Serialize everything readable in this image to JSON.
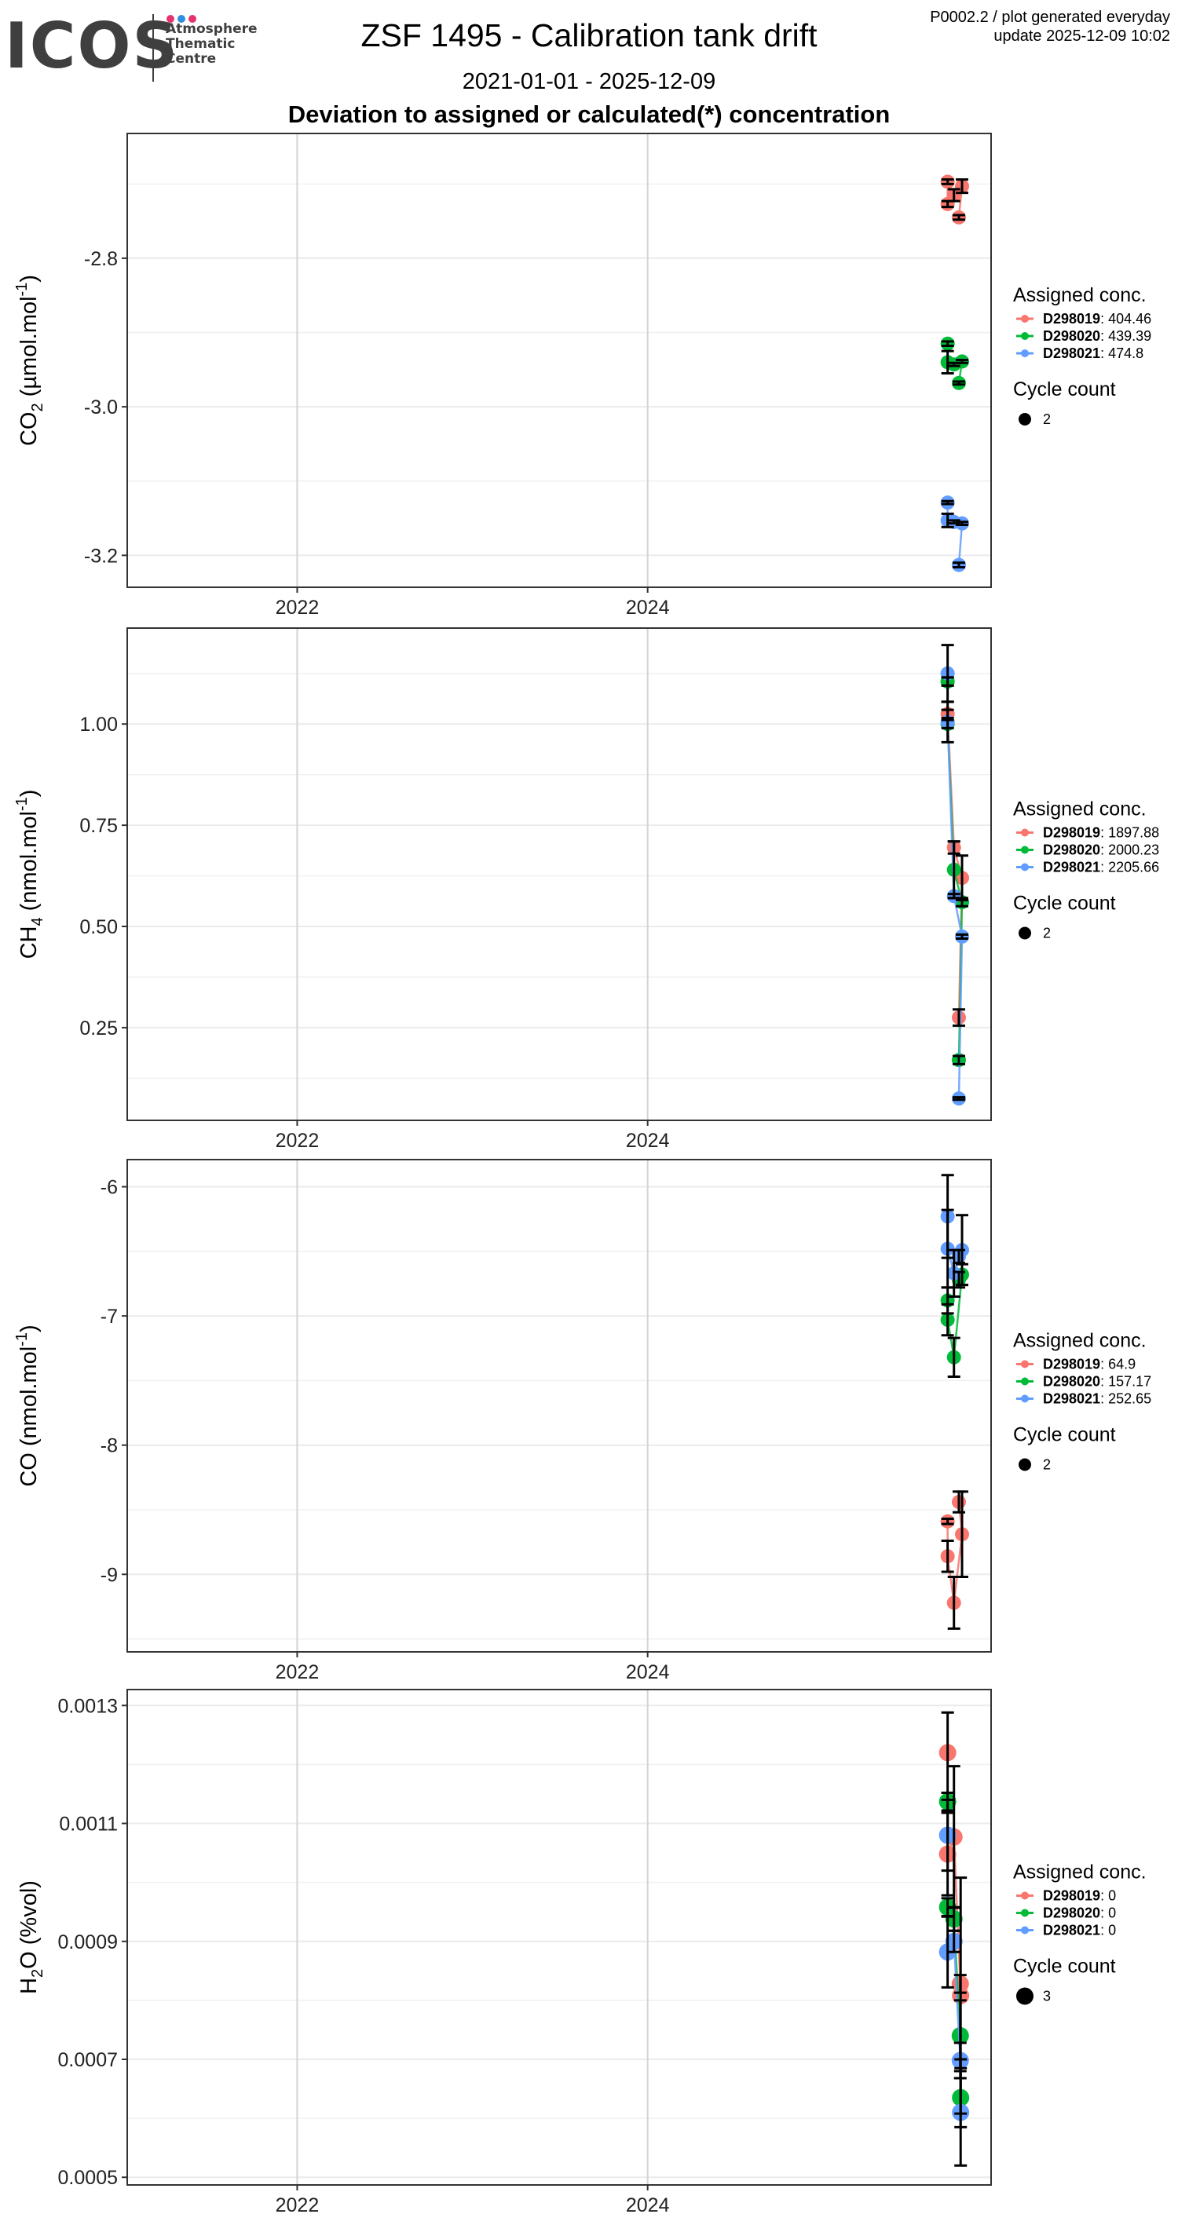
{
  "header": {
    "logo": {
      "name": "ICOS",
      "subtitle_lines": [
        "Atmosphere",
        "Thematic",
        "Centre"
      ],
      "dot_colors": [
        "#e6336f",
        "#2f8fe0",
        "#e6336f"
      ]
    },
    "title": "ZSF 1495 - Calibration tank drift",
    "date_range": "2021-01-01 - 2025-12-09",
    "section_title": "Deviation to assigned or calculated(*) concentration",
    "info_line1": "P0002.2 / plot generated everyday",
    "info_line2": "update  2025-12-09 10:02"
  },
  "chart_data": [
    {
      "type": "scatter",
      "id": "co2",
      "ylabel": "CO2 (µmol.mol-1)",
      "ylabel_parts": {
        "main": "CO",
        "sub": "2",
        "unit": " (µmol.mol",
        "sup": "-1",
        "close": ")"
      },
      "xlim": [
        2021.03,
        2025.96
      ],
      "x_ticks": [
        2022,
        2024
      ],
      "x_tick_labels": [
        "2022",
        "2024"
      ],
      "ylim": [
        -3.243,
        -2.632
      ],
      "y_ticks": [
        -2.8,
        -3.0,
        -3.2
      ],
      "y_tick_labels": [
        "-2.8",
        "-3.0",
        "-3.2"
      ],
      "y_minor": [
        -2.7,
        -2.9,
        -3.1
      ],
      "grid": true,
      "legend": {
        "title": "Assigned conc.",
        "entries": [
          {
            "tank": "D298019",
            "value": "404.46"
          },
          {
            "tank": "D298020",
            "value": "439.39"
          },
          {
            "tank": "D298021",
            "value": "474.8"
          }
        ],
        "size_title": "Cycle count",
        "size_value": "2"
      },
      "series": [
        {
          "name": "D298019",
          "color": "#f8766d",
          "points": [
            {
              "x": 2025.72,
              "y": -2.697,
              "err": 0.003
            },
            {
              "x": 2025.72,
              "y": -2.727,
              "err": 0.004
            },
            {
              "x": 2025.74,
              "y": -2.715,
              "err": 0.008
            },
            {
              "x": 2025.77,
              "y": -2.703,
              "err": 0.009
            },
            {
              "x": 2025.76,
              "y": -2.745,
              "err": 0.003
            }
          ]
        },
        {
          "name": "D298020",
          "color": "#00ba38",
          "points": [
            {
              "x": 2025.72,
              "y": -2.915,
              "err": 0.003
            },
            {
              "x": 2025.72,
              "y": -2.94,
              "err": 0.015
            },
            {
              "x": 2025.74,
              "y": -2.943,
              "err": 0.002
            },
            {
              "x": 2025.77,
              "y": -2.939,
              "err": 0.002
            },
            {
              "x": 2025.76,
              "y": -2.968,
              "err": 0.002
            }
          ]
        },
        {
          "name": "D298021",
          "color": "#619cff",
          "points": [
            {
              "x": 2025.72,
              "y": -3.129,
              "err": 0.002
            },
            {
              "x": 2025.72,
              "y": -3.153,
              "err": 0.009
            },
            {
              "x": 2025.74,
              "y": -3.155,
              "err": 0.002
            },
            {
              "x": 2025.77,
              "y": -3.157,
              "err": 0.002
            },
            {
              "x": 2025.76,
              "y": -3.213,
              "err": 0.003
            }
          ]
        }
      ]
    },
    {
      "type": "scatter",
      "id": "ch4",
      "ylabel": "CH4 (nmol.mol-1)",
      "ylabel_parts": {
        "main": "CH",
        "sub": "4",
        "unit": " (nmol.mol",
        "sup": "-1",
        "close": ")"
      },
      "xlim": [
        2021.03,
        2025.96
      ],
      "x_ticks": [
        2022,
        2024
      ],
      "x_tick_labels": [
        "2022",
        "2024"
      ],
      "ylim": [
        0.021,
        1.237
      ],
      "y_ticks": [
        1.0,
        0.75,
        0.5,
        0.25
      ],
      "y_tick_labels": [
        "1.00",
        "0.75",
        "0.50",
        "0.25"
      ],
      "y_minor": [
        1.125,
        0.875,
        0.625,
        0.375,
        0.125
      ],
      "grid": true,
      "legend": {
        "title": "Assigned conc.",
        "entries": [
          {
            "tank": "D298019",
            "value": "1897.88"
          },
          {
            "tank": "D298020",
            "value": "2000.23"
          },
          {
            "tank": "D298021",
            "value": "2205.66"
          }
        ],
        "size_title": "Cycle count",
        "size_value": "2"
      },
      "series": [
        {
          "name": "D298019",
          "color": "#f8766d",
          "points": [
            {
              "x": 2025.72,
              "y": 1.105,
              "err": 0.01
            },
            {
              "x": 2025.72,
              "y": 1.025,
              "err": 0.01
            },
            {
              "x": 2025.74,
              "y": 0.695,
              "err": 0.015
            },
            {
              "x": 2025.77,
              "y": 0.62,
              "err": 0.055
            },
            {
              "x": 2025.76,
              "y": 0.275,
              "err": 0.02
            }
          ]
        },
        {
          "name": "D298020",
          "color": "#00ba38",
          "points": [
            {
              "x": 2025.72,
              "y": 1.105,
              "err": 0.01
            },
            {
              "x": 2025.72,
              "y": 1.0,
              "err": 0.01
            },
            {
              "x": 2025.74,
              "y": 0.64,
              "err": 0.07
            },
            {
              "x": 2025.77,
              "y": 0.56,
              "err": 0.01
            },
            {
              "x": 2025.76,
              "y": 0.17,
              "err": 0.01
            }
          ]
        },
        {
          "name": "D298021",
          "color": "#619cff",
          "points": [
            {
              "x": 2025.72,
              "y": 1.125,
              "err": 0.07
            },
            {
              "x": 2025.72,
              "y": 1.005,
              "err": 0.05
            },
            {
              "x": 2025.74,
              "y": 0.575,
              "err": 0.005
            },
            {
              "x": 2025.77,
              "y": 0.475,
              "err": 0.005
            },
            {
              "x": 2025.76,
              "y": 0.075,
              "err": 0.003
            }
          ]
        }
      ]
    },
    {
      "type": "scatter",
      "id": "co",
      "ylabel": "CO (nmol.mol-1)",
      "ylabel_parts": {
        "main": "CO",
        "sub": "",
        "unit": " (nmol.mol",
        "sup": "-1",
        "close": ")"
      },
      "xlim": [
        2021.03,
        2025.96
      ],
      "x_ticks": [
        2022,
        2024
      ],
      "x_tick_labels": [
        "2022",
        "2024"
      ],
      "ylim": [
        -9.6,
        -5.79
      ],
      "y_ticks": [
        -6,
        -7,
        -8,
        -9
      ],
      "y_tick_labels": [
        "-6",
        "-7",
        "-8",
        "-9"
      ],
      "y_minor": [
        -6.5,
        -7.5,
        -8.5,
        -9.5
      ],
      "grid": true,
      "legend": {
        "title": "Assigned conc.",
        "entries": [
          {
            "tank": "D298019",
            "value": "64.9"
          },
          {
            "tank": "D298020",
            "value": "157.17"
          },
          {
            "tank": "D298021",
            "value": "252.65"
          }
        ],
        "size_title": "Cycle count",
        "size_value": "2"
      },
      "series": [
        {
          "name": "D298019",
          "color": "#f8766d",
          "points": [
            {
              "x": 2025.72,
              "y": -8.59,
              "err": 0.02
            },
            {
              "x": 2025.72,
              "y": -8.86,
              "err": 0.12
            },
            {
              "x": 2025.74,
              "y": -9.22,
              "err": 0.2
            },
            {
              "x": 2025.77,
              "y": -8.69,
              "err": 0.33
            },
            {
              "x": 2025.76,
              "y": -8.44,
              "err": 0.08
            }
          ]
        },
        {
          "name": "D298020",
          "color": "#00ba38",
          "points": [
            {
              "x": 2025.72,
              "y": -6.88,
              "err": 0.1
            },
            {
              "x": 2025.72,
              "y": -7.03,
              "err": 0.12
            },
            {
              "x": 2025.74,
              "y": -7.32,
              "err": 0.15
            },
            {
              "x": 2025.77,
              "y": -6.68,
              "err": 0.08
            },
            {
              "x": 2025.76,
              "y": -6.72,
              "err": 0.06
            }
          ]
        },
        {
          "name": "D298021",
          "color": "#619cff",
          "points": [
            {
              "x": 2025.72,
              "y": -6.23,
              "err": 0.32
            },
            {
              "x": 2025.72,
              "y": -6.48,
              "err": 0.3
            },
            {
              "x": 2025.74,
              "y": -6.67,
              "err": 0.18
            },
            {
              "x": 2025.77,
              "y": -6.49,
              "err": 0.27
            },
            {
              "x": 2025.76,
              "y": -6.54,
              "err": 0.05
            }
          ]
        }
      ]
    },
    {
      "type": "scatter",
      "id": "h2o",
      "ylabel": "H2O (%vol)",
      "ylabel_parts": {
        "main": "H",
        "sub": "2",
        "unit": "O (%vol",
        "sup": "",
        "close": ")"
      },
      "xlim": [
        2021.03,
        2025.96
      ],
      "x_ticks": [
        2022,
        2024
      ],
      "x_tick_labels": [
        "2022",
        "2024"
      ],
      "ylim": [
        0.000487,
        0.001327
      ],
      "y_ticks": [
        0.0013,
        0.0011,
        0.0009,
        0.0007,
        0.0005
      ],
      "y_tick_labels": [
        "0.0013",
        "0.0011",
        "0.0009",
        "0.0007",
        "0.0005"
      ],
      "y_minor": [
        0.0012,
        0.001,
        0.0008,
        0.0006
      ],
      "grid": true,
      "legend": {
        "title": "Assigned conc.",
        "entries": [
          {
            "tank": "D298019",
            "value": "0"
          },
          {
            "tank": "D298020",
            "value": "0"
          },
          {
            "tank": "D298021",
            "value": "0"
          }
        ],
        "size_title": "Cycle count",
        "size_value": "3"
      },
      "series": [
        {
          "name": "D298019",
          "color": "#f8766d",
          "points": [
            {
              "x": 2025.72,
              "y": 0.00122,
              "err": 6.8e-05
            },
            {
              "x": 2025.72,
              "y": 0.001048,
              "err": 7e-05
            },
            {
              "x": 2025.74,
              "y": 0.001077,
              "err": 0.00012
            },
            {
              "x": 2025.76,
              "y": 0.000828,
              "err": 1.5e-05
            },
            {
              "x": 2025.77,
              "y": 0.000808,
              "err": 0.0002
            }
          ]
        },
        {
          "name": "D298020",
          "color": "#00ba38",
          "points": [
            {
              "x": 2025.72,
              "y": 0.001137,
              "err": 1.5e-05
            },
            {
              "x": 2025.72,
              "y": 0.000958,
              "err": 1.5e-05
            },
            {
              "x": 2025.74,
              "y": 0.000938,
              "err": 2e-05
            },
            {
              "x": 2025.76,
              "y": 0.00074,
              "err": 6e-05
            },
            {
              "x": 2025.77,
              "y": 0.000635,
              "err": 5e-05
            }
          ]
        },
        {
          "name": "D298021",
          "color": "#619cff",
          "points": [
            {
              "x": 2025.72,
              "y": 0.00108,
              "err": 6e-05
            },
            {
              "x": 2025.72,
              "y": 0.000882,
              "err": 6e-05
            },
            {
              "x": 2025.74,
              "y": 0.0009,
              "err": 1.8e-05
            },
            {
              "x": 2025.76,
              "y": 0.000698,
              "err": 3e-05
            },
            {
              "x": 2025.77,
              "y": 0.00061,
              "err": 9e-05
            }
          ]
        }
      ]
    }
  ]
}
